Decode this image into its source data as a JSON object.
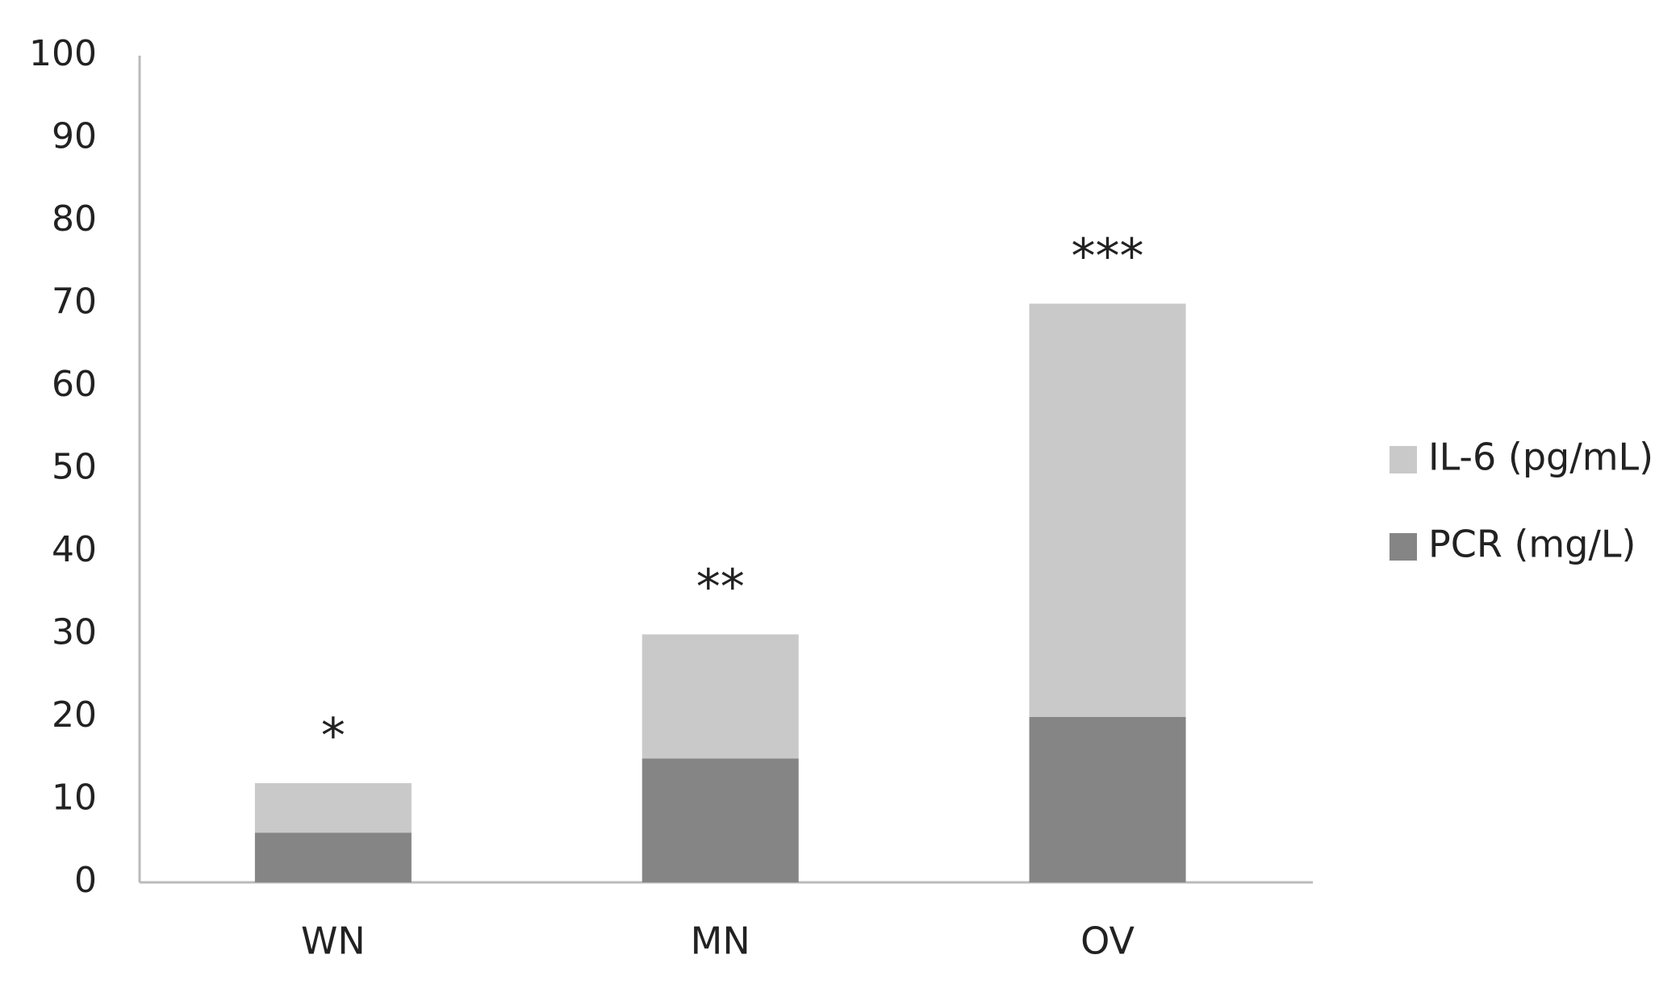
{
  "chart_data": {
    "type": "stacked-bar",
    "categories": [
      "WN",
      "MN",
      "OV"
    ],
    "series": [
      {
        "name": "PCR (mg/L)",
        "color": "#858585",
        "values": [
          6,
          15,
          20
        ]
      },
      {
        "name": "IL-6 (pg/mL)",
        "color": "#c9c9c9",
        "values": [
          6,
          15,
          50
        ]
      }
    ],
    "annotations": [
      "*",
      "**",
      "***"
    ],
    "ylim": [
      0,
      100
    ],
    "yticks": [
      0,
      10,
      20,
      30,
      40,
      50,
      60,
      70,
      80,
      90,
      100
    ],
    "grid": false,
    "legend": "right"
  }
}
